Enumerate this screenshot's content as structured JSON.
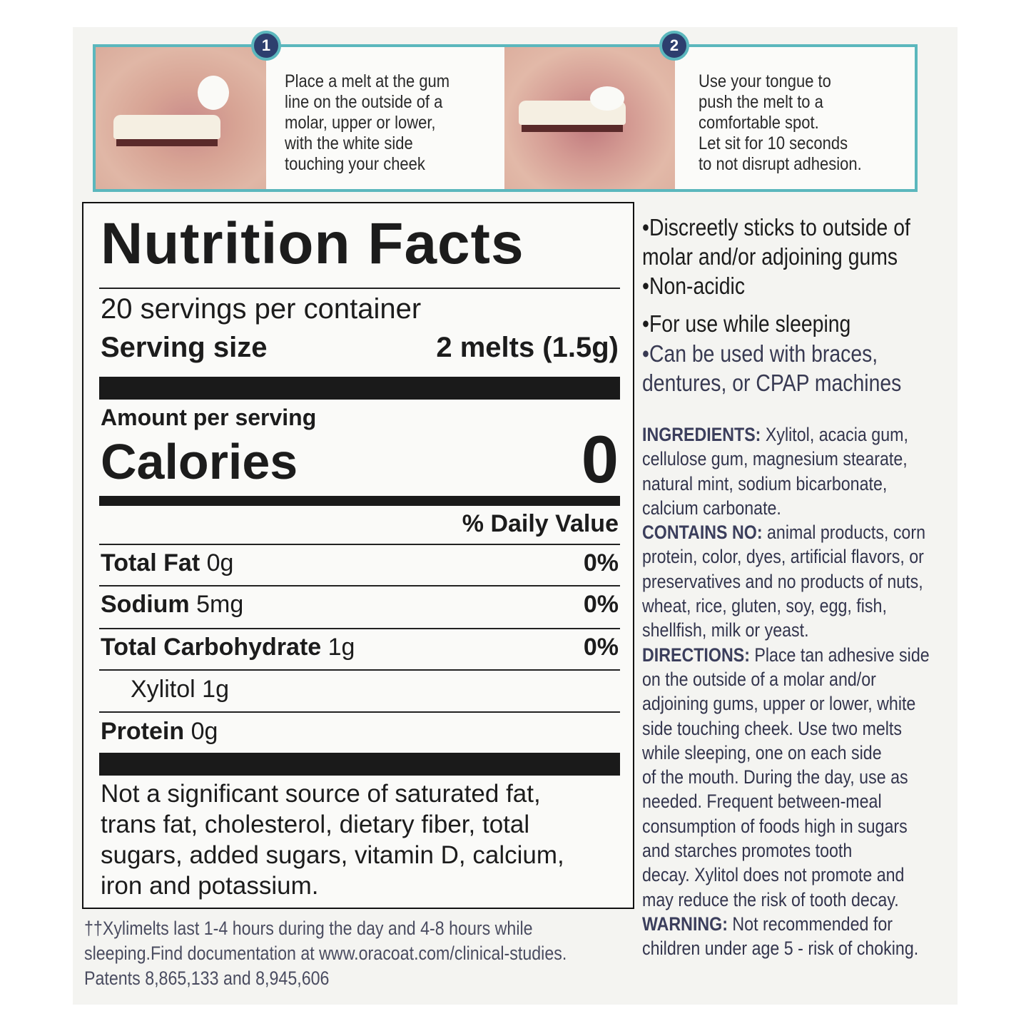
{
  "steps": [
    {
      "number": "1",
      "text": "Place a melt at the gum\nline on the outside of a\nmolar, upper or lower,\nwith the white side\ntouching your cheek"
    },
    {
      "number": "2",
      "text": "Use your tongue to\npush the melt to a\ncomfortable spot.\nLet sit for 10 seconds\nto not disrupt adhesion."
    }
  ],
  "nutrition": {
    "title": "Nutrition Facts",
    "servings": "20 servings per container",
    "serving_size_label": "Serving size",
    "serving_size_value": "2 melts (1.5g)",
    "amount_per_serving": "Amount per serving",
    "calories_label": "Calories",
    "calories_value": "0",
    "daily_value_header": "% Daily Value",
    "rows": [
      {
        "name": "Total Fat",
        "amount": "0g",
        "dv": "0%"
      },
      {
        "name": "Sodium",
        "amount": "5mg",
        "dv": "0%"
      },
      {
        "name": "Total Carbohydrate",
        "amount": "1g",
        "dv": "0%"
      },
      {
        "name": "Xylitol",
        "amount": "1g",
        "dv": ""
      },
      {
        "name": "Protein",
        "amount": "0g",
        "dv": ""
      }
    ],
    "footnote": "Not a significant source of saturated fat,\ntrans fat, cholesterol, dietary fiber, total\nsugars, added sugars, vitamin D, calcium,\niron and potassium."
  },
  "bullets": [
    "Discreetly sticks to outside of\n molar and/or adjoining gums",
    "Non-acidic",
    "For use while sleeping",
    "Can be used with braces,\n dentures, or CPAP machines"
  ],
  "info": {
    "ingredients_label": "INGREDIENTS:",
    "ingredients": " Xylitol, acacia gum,\ncellulose gum, magnesium stearate,\nnatural mint, sodium bicarbonate,\ncalcium carbonate.\n",
    "contains_no_label": "CONTAINS NO:",
    "contains_no": " animal products, corn\nprotein, color, dyes, artificial flavors, or\npreservatives and no products of nuts,\nwheat, rice, gluten, soy, egg, fish,\nshellfish, milk or yeast.\n",
    "directions_label": "DIRECTIONS:",
    "directions": " Place tan adhesive side\non the outside of a molar and/or\nadjoining gums, upper or lower, white\nside touching cheek. Use two melts\nwhile sleeping, one on each side\nof the mouth. During the day, use as\nneeded. Frequent between-meal\nconsumption of foods high in sugars\nand starches promotes tooth\ndecay. Xylitol does not promote and\nmay reduce the risk of tooth decay.\n",
    "warning_label": "WARNING:",
    "warning": " Not recommended for\nchildren under age 5 - risk of choking."
  },
  "footer": "††Xylimelts  last 1-4 hours during the day and 4-8 hours while\nsleeping.Find documentation at www.oracoat.com/clinical-studies.\nPatents 8,865,133 and 8,945,606",
  "colors": {
    "teal": "#5bb7bd",
    "navy": "#2d3f6e",
    "text_blue": "#383a52"
  }
}
